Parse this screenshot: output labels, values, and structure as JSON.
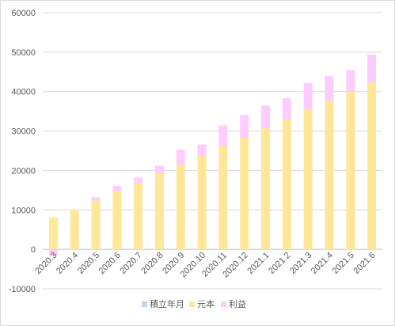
{
  "chart_data": {
    "type": "bar",
    "stacked": true,
    "title": "",
    "xlabel": "",
    "ylabel": "",
    "ylim": [
      -10000,
      60000
    ],
    "y_ticks": [
      -10000,
      0,
      10000,
      20000,
      30000,
      40000,
      50000,
      60000
    ],
    "grid": true,
    "legend_position": "bottom",
    "categories": [
      "2020.3",
      "2020.4",
      "2020.5",
      "2020.6",
      "2020.7",
      "2020.8",
      "2020.9",
      "2020.10",
      "2020.11",
      "2020.12",
      "2021.1",
      "2021.2",
      "2021.3",
      "2021.4",
      "2021.5",
      "2021.6"
    ],
    "series": [
      {
        "name": "積立年月",
        "color": "#bdd7ee",
        "values": [
          0,
          0,
          0,
          0,
          0,
          0,
          0,
          0,
          0,
          0,
          0,
          0,
          0,
          0,
          0,
          0
        ]
      },
      {
        "name": "元本",
        "color": "#ffe699",
        "values": [
          8100,
          10100,
          12400,
          14800,
          16900,
          19300,
          21500,
          23800,
          26200,
          28400,
          30700,
          33000,
          35400,
          37800,
          40000,
          42300
        ]
      },
      {
        "name": "利益",
        "color": "#ffccff",
        "values": [
          -1500,
          -100,
          800,
          1300,
          1300,
          1900,
          3800,
          2800,
          5200,
          5700,
          5700,
          5300,
          6800,
          6100,
          5500,
          7100
        ]
      }
    ]
  }
}
